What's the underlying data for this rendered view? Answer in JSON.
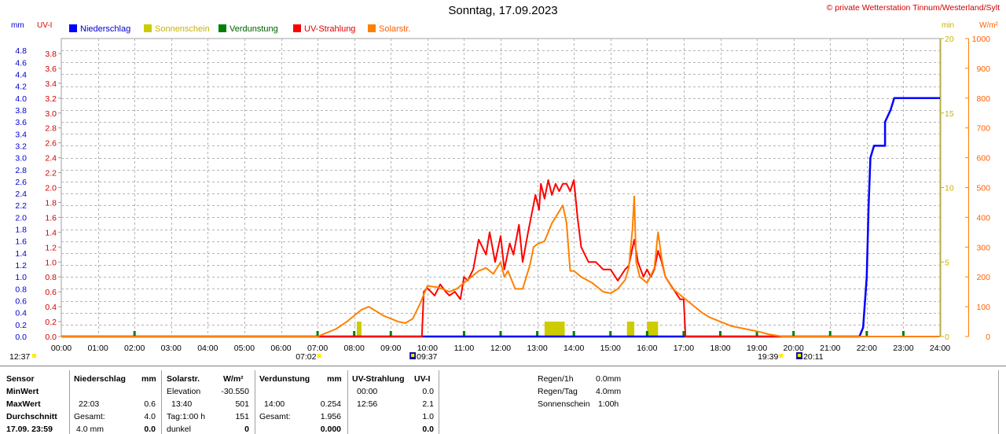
{
  "header": {
    "title": "Sonntag, 17.09.2023",
    "copyright": "© private Wetterstation Tinnum/Westerland/Sylt"
  },
  "axis_units": {
    "mm": "mm",
    "uvi": "UV-I",
    "min": "min",
    "wm2": "W/m²"
  },
  "legend": [
    {
      "label": "Niederschlag",
      "color": "#0000ff",
      "text_color": "#0000cc"
    },
    {
      "label": "Sonnenschein",
      "color": "#cccc00",
      "text_color": "#c8b400"
    },
    {
      "label": "Verdunstung",
      "color": "#008000",
      "text_color": "#006000"
    },
    {
      "label": "UV-Strahlung",
      "color": "#ff0000",
      "text_color": "#e00000"
    },
    {
      "label": "Solarstr.",
      "color": "#ff8000",
      "text_color": "#ff6000"
    }
  ],
  "chart_data": {
    "type": "line",
    "title": "Sonntag, 17.09.2023",
    "x_ticks": [
      "00:00",
      "01:00",
      "02:00",
      "03:00",
      "04:00",
      "05:00",
      "06:00",
      "07:00",
      "08:00",
      "09:00",
      "10:00",
      "11:00",
      "12:00",
      "13:00",
      "14:00",
      "15:00",
      "16:00",
      "17:00",
      "18:00",
      "19:00",
      "20:00",
      "21:00",
      "22:00",
      "23:00",
      "24:00"
    ],
    "xlim_h": [
      0,
      24
    ],
    "axes": {
      "mm": {
        "ticks": [
          "0.0",
          "0.2",
          "0.4",
          "0.6",
          "0.8",
          "1.0",
          "1.2",
          "1.4",
          "1.6",
          "1.8",
          "2.0",
          "2.2",
          "2.4",
          "2.6",
          "2.8",
          "3.0",
          "3.2",
          "3.4",
          "3.6",
          "3.8",
          "4.0",
          "4.2",
          "4.4",
          "4.6",
          "4.8"
        ],
        "ylim": [
          0,
          5
        ]
      },
      "uvi": {
        "ticks": [
          "0.0",
          "0.2",
          "0.4",
          "0.6",
          "0.8",
          "1.0",
          "1.2",
          "1.4",
          "1.6",
          "1.8",
          "2.0",
          "2.2",
          "2.4",
          "2.6",
          "2.8",
          "3.0",
          "3.2",
          "3.4",
          "3.6",
          "3.8"
        ],
        "ylim": [
          0,
          4
        ]
      },
      "min": {
        "ticks": [
          "0",
          "5",
          "10",
          "15",
          "20"
        ],
        "ylim": [
          0,
          20
        ]
      },
      "wm2": {
        "ticks": [
          "0",
          "100",
          "200",
          "300",
          "400",
          "500",
          "600",
          "700",
          "800",
          "900",
          "1000"
        ],
        "ylim": [
          0,
          1000
        ]
      }
    },
    "series": [
      {
        "name": "Niederschlag",
        "axis": "mm",
        "color": "#0000ff",
        "points": [
          [
            0,
            0
          ],
          [
            21.8,
            0
          ],
          [
            21.9,
            0.15
          ],
          [
            22.0,
            1.0
          ],
          [
            22.05,
            2.2
          ],
          [
            22.1,
            3.0
          ],
          [
            22.15,
            3.1
          ],
          [
            22.2,
            3.2
          ],
          [
            22.5,
            3.2
          ],
          [
            22.5,
            3.6
          ],
          [
            22.65,
            3.8
          ],
          [
            22.75,
            4.0
          ],
          [
            24,
            4.0
          ]
        ]
      },
      {
        "name": "UV-Strahlung",
        "axis": "uvi",
        "color": "#ff0000",
        "points": [
          [
            0,
            0
          ],
          [
            9.85,
            0
          ],
          [
            9.9,
            0.6
          ],
          [
            10.0,
            0.65
          ],
          [
            10.2,
            0.55
          ],
          [
            10.35,
            0.7
          ],
          [
            10.5,
            0.6
          ],
          [
            10.6,
            0.55
          ],
          [
            10.75,
            0.6
          ],
          [
            10.9,
            0.5
          ],
          [
            11.0,
            0.8
          ],
          [
            11.1,
            0.75
          ],
          [
            11.25,
            0.9
          ],
          [
            11.4,
            1.3
          ],
          [
            11.6,
            1.1
          ],
          [
            11.7,
            1.4
          ],
          [
            11.85,
            1.0
          ],
          [
            12.0,
            1.35
          ],
          [
            12.1,
            0.9
          ],
          [
            12.25,
            1.25
          ],
          [
            12.35,
            1.1
          ],
          [
            12.5,
            1.5
          ],
          [
            12.6,
            1.0
          ],
          [
            12.75,
            1.4
          ],
          [
            12.85,
            1.65
          ],
          [
            12.95,
            1.9
          ],
          [
            13.05,
            1.7
          ],
          [
            13.1,
            2.05
          ],
          [
            13.2,
            1.85
          ],
          [
            13.3,
            2.1
          ],
          [
            13.4,
            1.9
          ],
          [
            13.5,
            2.05
          ],
          [
            13.6,
            1.95
          ],
          [
            13.7,
            2.05
          ],
          [
            13.8,
            2.05
          ],
          [
            13.9,
            1.95
          ],
          [
            14.0,
            2.1
          ],
          [
            14.1,
            1.6
          ],
          [
            14.2,
            1.2
          ],
          [
            14.4,
            1.0
          ],
          [
            14.6,
            1.0
          ],
          [
            14.8,
            0.9
          ],
          [
            15.0,
            0.9
          ],
          [
            15.2,
            0.75
          ],
          [
            15.4,
            0.9
          ],
          [
            15.5,
            0.95
          ],
          [
            15.65,
            1.3
          ],
          [
            15.75,
            1.0
          ],
          [
            15.9,
            0.8
          ],
          [
            16.0,
            0.9
          ],
          [
            16.1,
            0.8
          ],
          [
            16.2,
            0.9
          ],
          [
            16.3,
            1.15
          ],
          [
            16.4,
            1.0
          ],
          [
            16.5,
            0.8
          ],
          [
            16.7,
            0.65
          ],
          [
            16.9,
            0.5
          ],
          [
            17.0,
            0.5
          ],
          [
            17.05,
            0
          ],
          [
            24,
            0
          ]
        ]
      },
      {
        "name": "Solarstr.",
        "axis": "wm2",
        "color": "#ff8000",
        "points": [
          [
            0,
            0
          ],
          [
            7.0,
            0
          ],
          [
            7.2,
            10
          ],
          [
            7.5,
            25
          ],
          [
            7.8,
            50
          ],
          [
            8.0,
            70
          ],
          [
            8.2,
            90
          ],
          [
            8.4,
            100
          ],
          [
            8.6,
            85
          ],
          [
            8.8,
            70
          ],
          [
            9.0,
            60
          ],
          [
            9.2,
            50
          ],
          [
            9.4,
            45
          ],
          [
            9.6,
            60
          ],
          [
            9.8,
            110
          ],
          [
            10.0,
            170
          ],
          [
            10.3,
            165
          ],
          [
            10.6,
            150
          ],
          [
            10.8,
            160
          ],
          [
            11.0,
            180
          ],
          [
            11.2,
            200
          ],
          [
            11.4,
            220
          ],
          [
            11.6,
            230
          ],
          [
            11.8,
            210
          ],
          [
            12.0,
            250
          ],
          [
            12.1,
            200
          ],
          [
            12.2,
            220
          ],
          [
            12.4,
            160
          ],
          [
            12.6,
            160
          ],
          [
            12.8,
            240
          ],
          [
            12.9,
            300
          ],
          [
            13.0,
            310
          ],
          [
            13.2,
            320
          ],
          [
            13.4,
            380
          ],
          [
            13.6,
            420
          ],
          [
            13.7,
            440
          ],
          [
            13.8,
            380
          ],
          [
            13.9,
            220
          ],
          [
            14.0,
            220
          ],
          [
            14.2,
            200
          ],
          [
            14.5,
            180
          ],
          [
            14.8,
            150
          ],
          [
            15.0,
            145
          ],
          [
            15.2,
            160
          ],
          [
            15.4,
            190
          ],
          [
            15.5,
            230
          ],
          [
            15.6,
            360
          ],
          [
            15.65,
            470
          ],
          [
            15.7,
            250
          ],
          [
            15.8,
            200
          ],
          [
            16.0,
            180
          ],
          [
            16.2,
            230
          ],
          [
            16.3,
            350
          ],
          [
            16.4,
            260
          ],
          [
            16.5,
            200
          ],
          [
            16.7,
            160
          ],
          [
            16.9,
            140
          ],
          [
            17.1,
            120
          ],
          [
            17.3,
            100
          ],
          [
            17.5,
            80
          ],
          [
            17.7,
            65
          ],
          [
            17.9,
            55
          ],
          [
            18.1,
            45
          ],
          [
            18.3,
            35
          ],
          [
            18.5,
            30
          ],
          [
            18.7,
            25
          ],
          [
            18.9,
            20
          ],
          [
            19.1,
            15
          ],
          [
            19.3,
            8
          ],
          [
            19.6,
            2
          ],
          [
            19.7,
            0
          ],
          [
            24,
            0
          ]
        ]
      }
    ],
    "sunshine_bars": [
      {
        "start": 8.07,
        "end": 8.2,
        "minutes": 1
      },
      {
        "start": 13.2,
        "end": 13.75,
        "minutes": 1
      },
      {
        "start": 15.45,
        "end": 15.65,
        "minutes": 1
      },
      {
        "start": 16.0,
        "end": 16.3,
        "minutes": 1
      }
    ],
    "evaporation_marks_h": [
      2.0,
      7.0,
      8.0,
      9.0,
      11.0,
      12.0,
      13.0,
      14.0,
      15.0,
      16.0,
      17.0,
      18.0,
      19.0,
      20.0,
      21.0,
      22.0,
      23.0
    ],
    "sun_events": [
      {
        "label": "12:37",
        "h": 0.0
      },
      {
        "label": "07:02",
        "h": 7.03
      },
      {
        "label": "09:37",
        "h": 9.62
      },
      {
        "label": "19:39",
        "h": 19.65
      },
      {
        "label": "20:11",
        "h": 20.18
      }
    ]
  },
  "table": {
    "col1": {
      "header": "Sensor",
      "rows": [
        "MinWert",
        "MaxWert",
        "Durchschnitt",
        "17.09. 23:59"
      ]
    },
    "col2": {
      "header": "Niederschlag",
      "unit": "mm",
      "rows": [
        [
          "",
          ""
        ],
        [
          "22:03",
          "0.6"
        ],
        [
          "Gesamt:",
          "4.0"
        ],
        [
          "4.0 mm",
          "0.0"
        ]
      ]
    },
    "col3": {
      "header": "Solarstr.",
      "unit": "W/m²",
      "rows": [
        [
          "Elevation",
          "-30.550"
        ],
        [
          "13:40",
          "501"
        ],
        [
          "Tag:1:00 h",
          "151"
        ],
        [
          "dunkel",
          "0"
        ]
      ]
    },
    "col4": {
      "header": "Verdunstung",
      "unit": "mm",
      "rows": [
        [
          "",
          ""
        ],
        [
          "14:00",
          "0.254"
        ],
        [
          "Gesamt:",
          "1.956"
        ],
        [
          "",
          "0.000"
        ]
      ]
    },
    "col5": {
      "header": "UV-Strahlung",
      "unit": "UV-I",
      "rows": [
        [
          "00:00",
          "0.0"
        ],
        [
          "12:56",
          "2.1"
        ],
        [
          "",
          "1.0"
        ],
        [
          "",
          "0.0"
        ]
      ]
    },
    "summary": [
      {
        "label": "Regen/1h",
        "value": "0.0mm"
      },
      {
        "label": "Regen/Tag",
        "value": "4.0mm"
      },
      {
        "label": "Sonnenschein",
        "value": "1:00h"
      }
    ]
  }
}
